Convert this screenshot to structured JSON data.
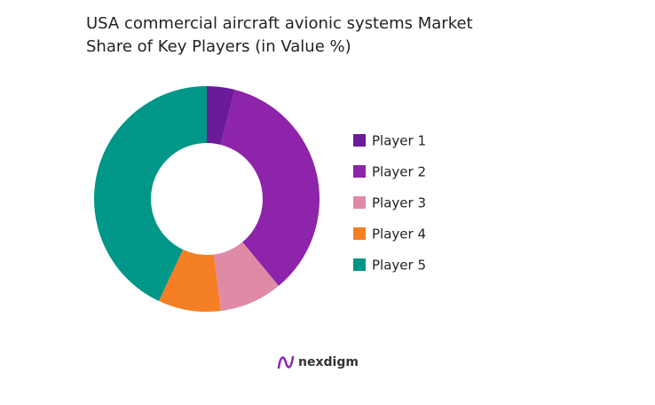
{
  "chart_data": {
    "type": "donut",
    "title": "USA commercial aircraft avionic systems Market Share of Key Players (in Value %)",
    "categories": [
      "Player 1",
      "Player 2",
      "Player 3",
      "Player 4",
      "Player 5"
    ],
    "values": [
      4,
      35,
      9,
      9,
      43
    ],
    "colors": [
      "#6a1b9a",
      "#8e24aa",
      "#e08ba5",
      "#f57f24",
      "#009688"
    ],
    "legend": "right"
  },
  "brand": "nexdigm"
}
